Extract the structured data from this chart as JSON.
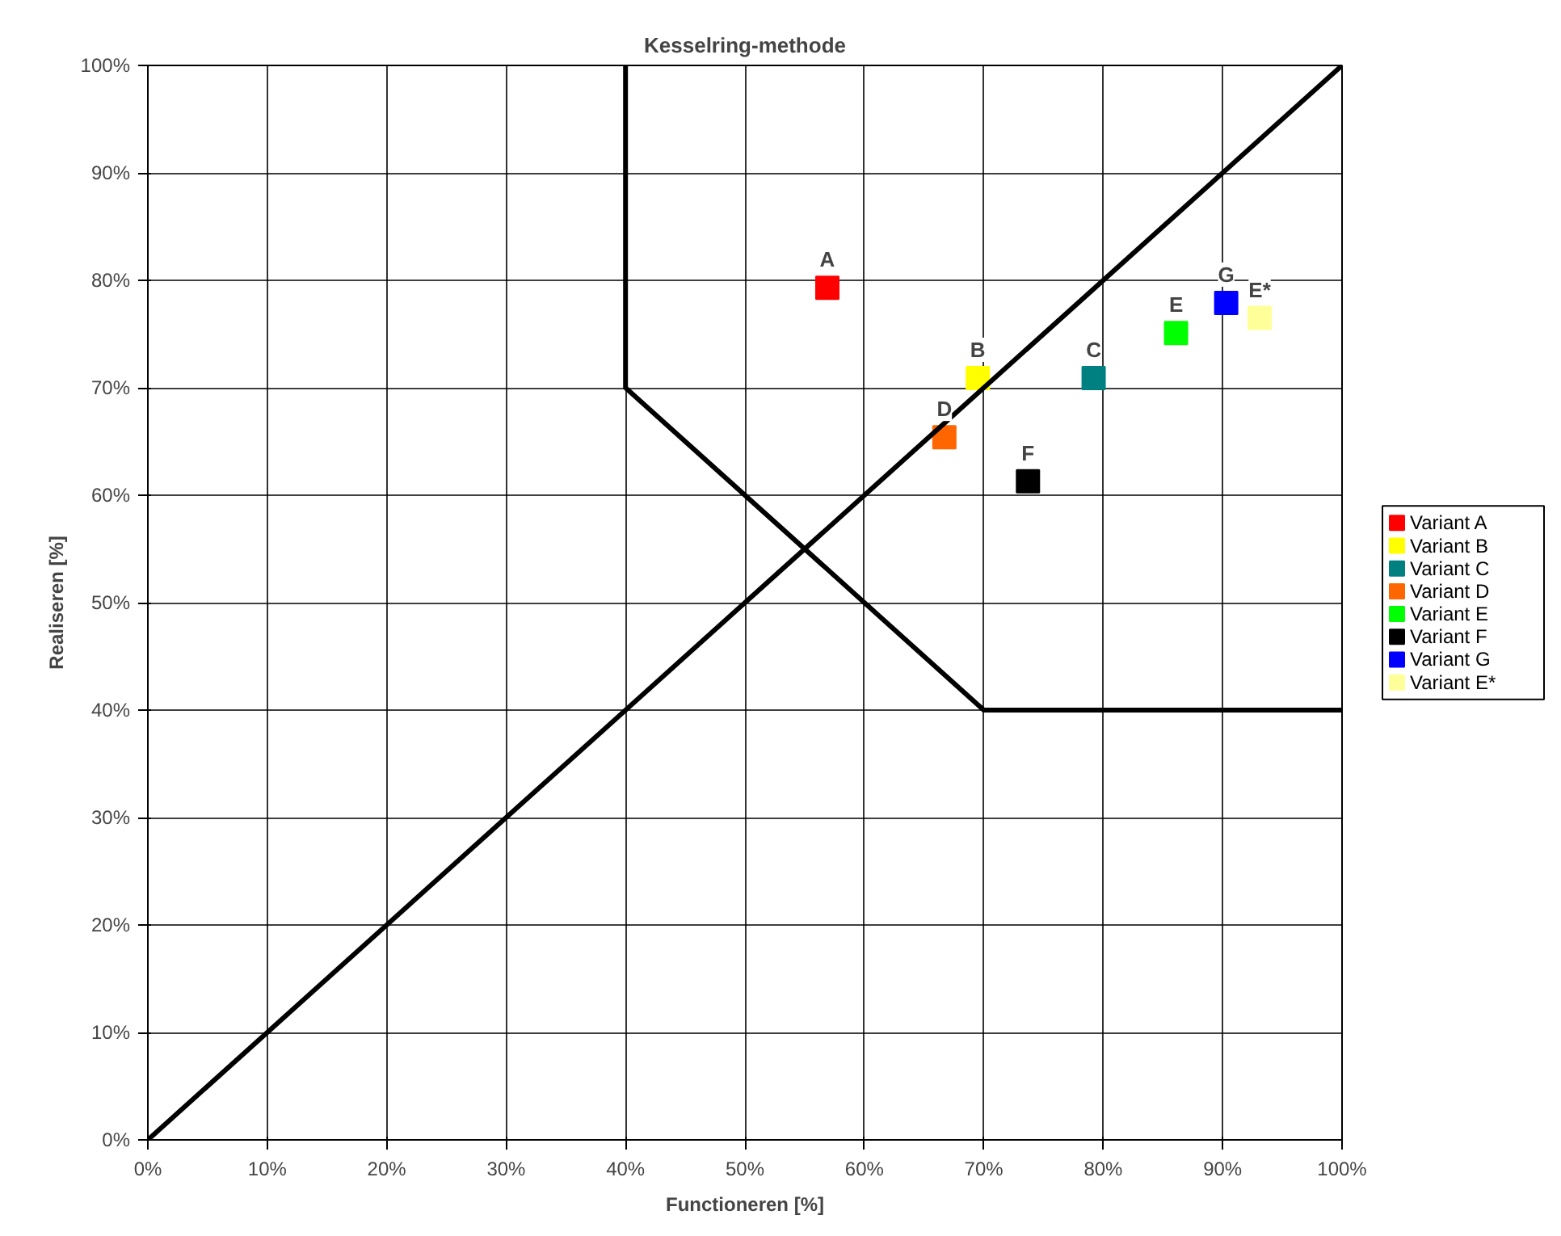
{
  "chart_data": {
    "type": "scatter",
    "title": "Kesselring-methode",
    "xlabel": "Functioneren [%]",
    "ylabel": "Realiseren [%]",
    "xlim": [
      0,
      100
    ],
    "ylim": [
      0,
      100
    ],
    "xticks": [
      {
        "value": 0,
        "label": "0%"
      },
      {
        "value": 10,
        "label": "10%"
      },
      {
        "value": 20,
        "label": "20%"
      },
      {
        "value": 30,
        "label": "30%"
      },
      {
        "value": 40,
        "label": "40%"
      },
      {
        "value": 50,
        "label": "50%"
      },
      {
        "value": 60,
        "label": "60%"
      },
      {
        "value": 70,
        "label": "70%"
      },
      {
        "value": 80,
        "label": "80%"
      },
      {
        "value": 90,
        "label": "90%"
      },
      {
        "value": 100,
        "label": "100%"
      }
    ],
    "yticks": [
      {
        "value": 0,
        "label": "0%"
      },
      {
        "value": 10,
        "label": "10%"
      },
      {
        "value": 20,
        "label": "20%"
      },
      {
        "value": 30,
        "label": "30%"
      },
      {
        "value": 40,
        "label": "40%"
      },
      {
        "value": 50,
        "label": "50%"
      },
      {
        "value": 60,
        "label": "60%"
      },
      {
        "value": 70,
        "label": "70%"
      },
      {
        "value": 80,
        "label": "80%"
      },
      {
        "value": 90,
        "label": "90%"
      },
      {
        "value": 100,
        "label": "100%"
      }
    ],
    "grid": true,
    "legend": "right",
    "marker": "square",
    "series": [
      {
        "name": "Variant A",
        "color": "#ff0000",
        "x": [
          56.9
        ],
        "values": [
          79.3
        ]
      },
      {
        "name": "Variant B",
        "color": "#ffff00",
        "x": [
          69.5
        ],
        "values": [
          70.9
        ]
      },
      {
        "name": "Variant C",
        "color": "#008080",
        "x": [
          79.2
        ],
        "values": [
          70.9
        ]
      },
      {
        "name": "Variant D",
        "color": "#ff6600",
        "x": [
          66.7
        ],
        "values": [
          65.4
        ]
      },
      {
        "name": "Variant E",
        "color": "#00ff00",
        "x": [
          86.1
        ],
        "values": [
          75.1
        ]
      },
      {
        "name": "Variant F",
        "color": "#000000",
        "x": [
          73.7
        ],
        "values": [
          61.3
        ]
      },
      {
        "name": "Variant G",
        "color": "#0000ff",
        "x": [
          90.3
        ],
        "values": [
          77.9
        ]
      },
      {
        "name": "Variant E*",
        "color": "#ffff99",
        "x": [
          93.1
        ],
        "values": [
          76.5
        ]
      },
      {
        "type": "line",
        "color": "#000000",
        "x": [
          0,
          100
        ],
        "values": [
          0,
          100
        ],
        "line_style": "solid",
        "marker": "none"
      },
      {
        "type": "line",
        "color": "#000000",
        "x": [
          40,
          40,
          70,
          100
        ],
        "values": [
          100,
          70,
          40,
          40
        ],
        "line_style": "solid",
        "marker": "none"
      }
    ],
    "annotations": [
      {
        "text": "A",
        "x": 56.9,
        "y": 79.3
      },
      {
        "text": "B",
        "x": 69.5,
        "y": 70.9
      },
      {
        "text": "C",
        "x": 79.2,
        "y": 70.9
      },
      {
        "text": "D",
        "x": 66.7,
        "y": 65.4
      },
      {
        "text": "E",
        "x": 86.1,
        "y": 75.1
      },
      {
        "text": "F",
        "x": 73.7,
        "y": 61.3
      },
      {
        "text": "G",
        "x": 90.3,
        "y": 77.9
      },
      {
        "text": "E*",
        "x": 93.1,
        "y": 76.5
      }
    ]
  }
}
